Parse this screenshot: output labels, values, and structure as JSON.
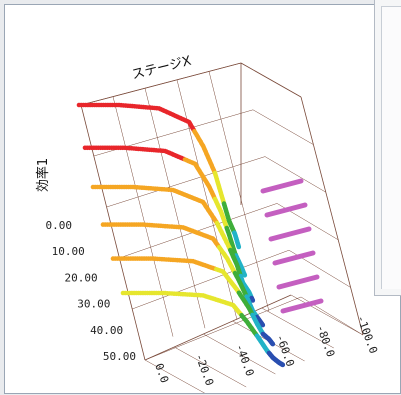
{
  "window": {
    "title": ""
  },
  "chart_data": {
    "type": "scatter",
    "title": "",
    "z_axis": {
      "label": "効率1",
      "ticks": [
        "0.00",
        "10.00",
        "20.00",
        "30.00",
        "40.00",
        "50.00"
      ],
      "range": [
        0,
        50
      ]
    },
    "x_axis": {
      "label": "ステージX",
      "ticks": [
        "0.0",
        "-20.0",
        "-40.0",
        "-60.0",
        "-80.0",
        "-100.0"
      ],
      "range": [
        0,
        -100
      ]
    },
    "y_axis": {
      "label": "",
      "ticks": []
    },
    "grid": true,
    "colors": {
      "high": "#e8262b",
      "mid": "#f5a623",
      "yellow": "#e6e62e",
      "green": "#3fae3a",
      "cyan": "#23b3c7",
      "blue": "#2a4fb0",
      "projection": "#c45fc0"
    },
    "series": [
      {
        "values": [
          [
            0,
            50
          ],
          [
            -20,
            50
          ],
          [
            -40,
            49
          ],
          [
            -55,
            45
          ],
          [
            -62,
            38
          ],
          [
            -68,
            30
          ],
          [
            -72,
            22
          ],
          [
            -75,
            16
          ],
          [
            -78,
            12
          ],
          [
            -80,
            8
          ]
        ]
      },
      {
        "values": [
          [
            0,
            46
          ],
          [
            -20,
            46
          ],
          [
            -40,
            45
          ],
          [
            -55,
            41
          ],
          [
            -62,
            34
          ],
          [
            -68,
            26
          ],
          [
            -72,
            19
          ],
          [
            -75,
            13
          ],
          [
            -78,
            9
          ],
          [
            -80,
            6
          ]
        ]
      },
      {
        "values": [
          [
            0,
            42
          ],
          [
            -20,
            42
          ],
          [
            -40,
            41
          ],
          [
            -55,
            37
          ],
          [
            -62,
            30
          ],
          [
            -68,
            22
          ],
          [
            -72,
            16
          ],
          [
            -75,
            10
          ],
          [
            -78,
            7
          ],
          [
            -80,
            4
          ]
        ]
      },
      {
        "values": [
          [
            0,
            38
          ],
          [
            -20,
            38
          ],
          [
            -40,
            37
          ],
          [
            -55,
            33
          ],
          [
            -62,
            26
          ],
          [
            -68,
            18
          ],
          [
            -72,
            12
          ],
          [
            -75,
            7
          ],
          [
            -78,
            4
          ],
          [
            -80,
            2
          ]
        ]
      },
      {
        "values": [
          [
            0,
            34
          ],
          [
            -20,
            34
          ],
          [
            -40,
            33
          ],
          [
            -55,
            29
          ],
          [
            -62,
            22
          ],
          [
            -68,
            15
          ],
          [
            -72,
            9
          ],
          [
            -75,
            5
          ],
          [
            -78,
            3
          ],
          [
            -80,
            1
          ]
        ]
      },
      {
        "values": [
          [
            0,
            30
          ],
          [
            -20,
            30
          ],
          [
            -40,
            29
          ],
          [
            -55,
            25
          ],
          [
            -62,
            18
          ],
          [
            -68,
            11
          ],
          [
            -72,
            6
          ],
          [
            -75,
            3
          ],
          [
            -78,
            1
          ],
          [
            -80,
            0
          ]
        ]
      }
    ]
  }
}
